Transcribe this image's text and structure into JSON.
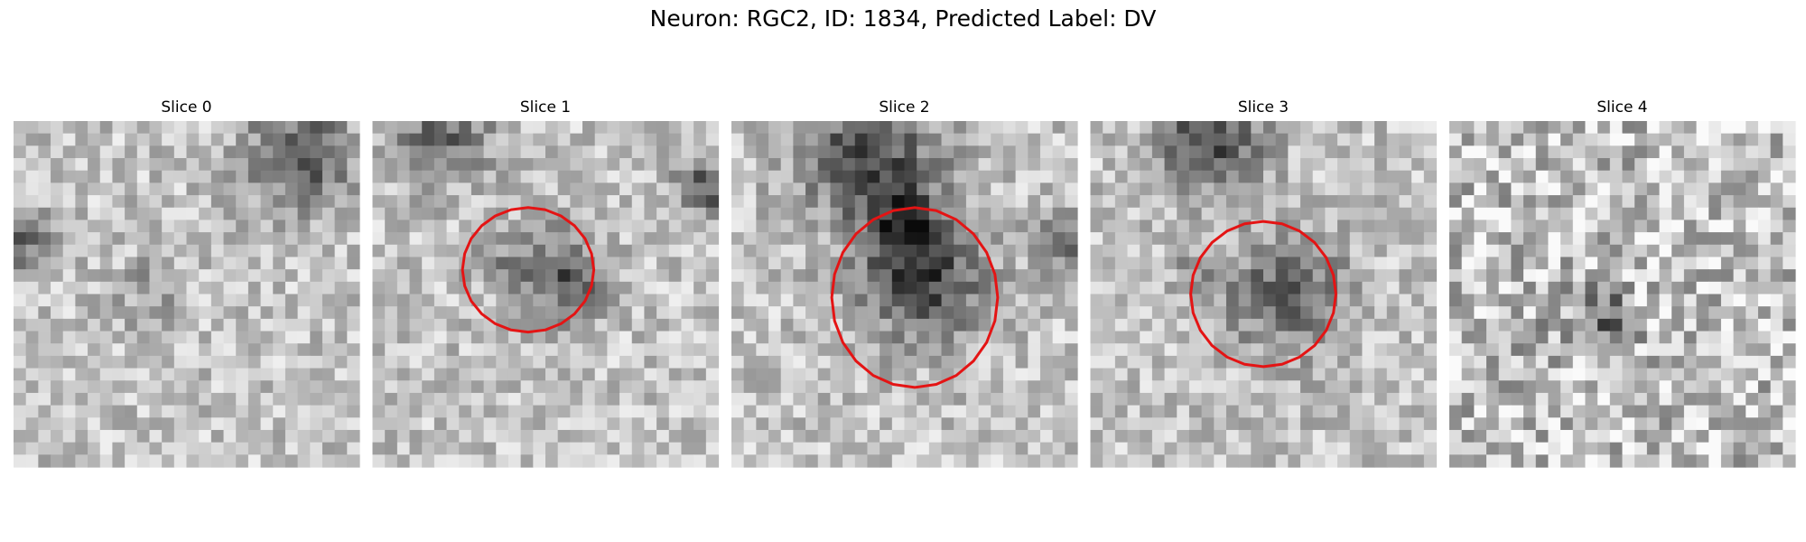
{
  "header": {
    "title": "Neuron: RGC2, ID: 1834, Predicted Label: DV"
  },
  "panels": [
    {
      "title": "Slice 0"
    },
    {
      "title": "Slice 1"
    },
    {
      "title": "Slice 2"
    },
    {
      "title": "Slice 3"
    },
    {
      "title": "Slice 4"
    }
  ]
}
